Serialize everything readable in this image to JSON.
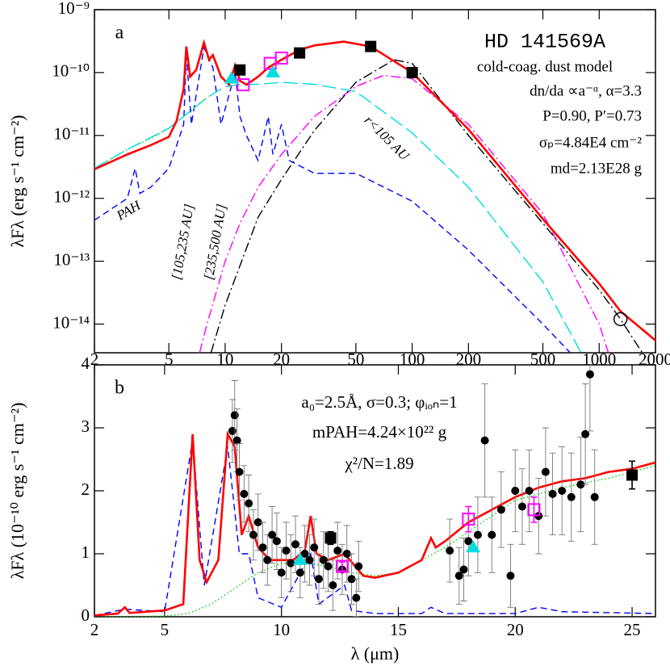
{
  "chart_data": [
    {
      "type": "line",
      "panel_label": "a",
      "title": "HD 141569A",
      "annotations": [
        "cold-coag. dust model",
        "dn/da ∝a⁻ᵅ, α=3.3",
        "P=0.90, P′=0.73",
        "σₚ=4.84E4 cm⁻²",
        "md=2.13E28 g"
      ],
      "ylabel": "λFλ  (erg s⁻¹ cm⁻²)",
      "xlog": true,
      "ylog": true,
      "xlim": [
        2,
        2000
      ],
      "ylim": [
        3.5e-15,
        1e-09
      ],
      "xticks": [
        2,
        5,
        10,
        20,
        50,
        100,
        200,
        500,
        1000,
        2000
      ],
      "yticks": [
        {
          "value": 1e-14,
          "label": "10⁻¹⁴"
        },
        {
          "value": 1e-13,
          "label": "10⁻¹³"
        },
        {
          "value": 1e-12,
          "label": "10⁻¹²"
        },
        {
          "value": 1e-11,
          "label": "10⁻¹¹"
        },
        {
          "value": 1e-10,
          "label": "10⁻¹⁰"
        },
        {
          "value": 1e-09,
          "label": "10⁻⁹"
        }
      ],
      "grid": false,
      "series": [
        {
          "color": "#00cc00",
          "dash": "dotted",
          "x": [
            2,
            3,
            4,
            5,
            6,
            8
          ],
          "values": [
            3e-12,
            6e-12,
            9e-12,
            1.3e-11,
            2e-11,
            4e-11
          ]
        },
        {
          "name": "PAH",
          "color": "#0000ff",
          "dash": "dashed",
          "x": [
            2,
            3,
            3.3,
            3.5,
            4,
            5,
            6,
            6.2,
            6.6,
            7.7,
            8.6,
            9.5,
            11.3,
            12,
            13,
            15,
            17,
            18,
            20,
            22,
            30,
            50,
            100,
            200,
            500,
            700
          ],
          "values": [
            4.5e-13,
            1e-12,
            3e-12,
            1.2e-12,
            1.5e-12,
            3e-12,
            1.5e-11,
            2e-10,
            1.5e-11,
            2.5e-10,
            1.2e-10,
            1.5e-11,
            1e-10,
            2e-11,
            1e-11,
            4e-12,
            2e-11,
            5e-12,
            1.5e-11,
            4e-12,
            2.5e-12,
            2.5e-12,
            9e-13,
            1.5e-13,
            1e-14,
            3.5e-15
          ]
        },
        {
          "name": "r<105 AU",
          "color": "#00dddd",
          "dash": "long-dashed",
          "x": [
            2,
            3,
            5,
            8,
            10,
            12,
            15,
            20,
            30,
            50,
            100,
            200,
            500,
            800
          ],
          "values": [
            3e-12,
            6e-12,
            1.3e-11,
            4e-11,
            6e-11,
            6.5e-11,
            6.5e-11,
            7e-11,
            6.5e-11,
            5e-11,
            1.1e-11,
            1.5e-12,
            4.7e-14,
            3.5e-15
          ]
        },
        {
          "name": "[105,235 AU]",
          "color": "#ff00ff",
          "dash": "dash-dot",
          "x": [
            7.3,
            8,
            10,
            12,
            15,
            20,
            30,
            50,
            70,
            100,
            200,
            500,
            1000,
            1120
          ],
          "values": [
            3.5e-15,
            1e-14,
            1e-13,
            4e-13,
            1.5e-12,
            5e-12,
            2e-11,
            6e-11,
            9e-11,
            8e-11,
            1.5e-11,
            5.7e-13,
            1e-14,
            3.5e-15
          ]
        },
        {
          "name": "[235,500 AU]",
          "color": "#000000",
          "dash": "dash-dot",
          "x": [
            8.4,
            10,
            15,
            20,
            30,
            50,
            80,
            100,
            200,
            500,
            1000,
            1300,
            1700
          ],
          "values": [
            3.5e-15,
            2e-14,
            5e-13,
            2e-12,
            1.2e-11,
            7e-11,
            1.6e-10,
            1.4e-10,
            1e-11,
            4e-13,
            3.5e-14,
            1.2e-14,
            3.5e-15
          ]
        },
        {
          "color": "#ff0000",
          "dash": "solid",
          "x": [
            2,
            3,
            4,
            5,
            5.5,
            6,
            6.2,
            6.5,
            7,
            7.7,
            8.2,
            8.6,
            9.5,
            10.5,
            11.3,
            12,
            13,
            15,
            17,
            20,
            25,
            30,
            43,
            60,
            100,
            200,
            500,
            1000,
            1300,
            2000
          ],
          "values": [
            2.9e-12,
            5e-12,
            7e-12,
            9.5e-12,
            1.7e-11,
            5.5e-11,
            2.6e-10,
            8.6e-11,
            1.1e-10,
            3e-10,
            1.6e-10,
            1.9e-10,
            8.6e-11,
            6.4e-11,
            1.3e-10,
            7.4e-11,
            6.4e-11,
            8.6e-11,
            1.2e-10,
            1.6e-10,
            2.3e-10,
            2.7e-10,
            3.1e-10,
            2.6e-10,
            1e-10,
            1.25e-11,
            4.7e-13,
            4.4e-14,
            1.6e-14,
            5.5e-15
          ]
        },
        {
          "color": "#000000",
          "marker": "square",
          "x": [
            12,
            25,
            60,
            100
          ],
          "values": [
            1.1e-10,
            2.05e-10,
            2.6e-10,
            1e-10
          ]
        },
        {
          "color": "#ff00ff",
          "marker": "square-open",
          "x": [
            12.5,
            17.4,
            20
          ],
          "values": [
            6.4e-11,
            1.4e-10,
            1.7e-10
          ]
        },
        {
          "color": "#00dddd",
          "marker": "triangle",
          "x": [
            10.8,
            18
          ],
          "values": [
            8e-11,
            1e-10
          ]
        },
        {
          "color": "#000000",
          "marker": "circle-open",
          "x": [
            1300
          ],
          "values": [
            1.2e-14
          ]
        }
      ]
    },
    {
      "type": "line",
      "panel_label": "b",
      "annotations": [
        "a₀=2.5Å, σ=0.3; φᵢₒₙ=1",
        "mPAH=4.24×10²² g",
        "χ²/N=1.89"
      ],
      "ylabel": "λFλ  (10⁻¹⁰ erg s⁻¹ cm⁻²)",
      "xlabel": "λ (μm)",
      "xlog": false,
      "ylog": false,
      "xlim": [
        2,
        26
      ],
      "ylim": [
        0,
        4
      ],
      "xticks": [
        2,
        5,
        10,
        15,
        20,
        25
      ],
      "yticks": [
        0,
        1,
        2,
        3,
        4
      ],
      "grid": false,
      "series": [
        {
          "color": "#00cc00",
          "dash": "dotted",
          "x": [
            2,
            5,
            6,
            7,
            8,
            9,
            10,
            11,
            12,
            13,
            14,
            15,
            17,
            20,
            22,
            24,
            26
          ],
          "values": [
            0,
            0.01,
            0.05,
            0.2,
            0.45,
            0.7,
            0.85,
            0.85,
            0.8,
            0.7,
            0.65,
            0.7,
            1.1,
            1.85,
            2.05,
            2.2,
            2.4
          ]
        },
        {
          "color": "#0000ff",
          "dash": "dashed",
          "x": [
            2,
            3.3,
            5,
            6.2,
            6.7,
            7.7,
            8.2,
            8.6,
            9,
            10,
            11.25,
            11.6,
            12.7,
            13,
            14,
            16,
            16.4,
            17,
            20,
            21,
            22,
            26
          ],
          "values": [
            0.02,
            0.12,
            0.08,
            2.8,
            0.5,
            2.7,
            1,
            1,
            0.3,
            0.15,
            1,
            0.2,
            0.5,
            0.1,
            0.05,
            0.05,
            0.15,
            0.05,
            0.05,
            0.15,
            0.08,
            0.05
          ]
        },
        {
          "color": "#ff0000",
          "dash": "solid",
          "x": [
            2,
            3,
            3.3,
            3.5,
            5,
            5.8,
            6.2,
            6.5,
            6.8,
            7.3,
            7.7,
            8,
            8.3,
            8.6,
            9,
            9.5,
            10,
            10.5,
            11,
            11.25,
            11.5,
            12,
            12.7,
            13.5,
            14,
            15,
            16,
            16.4,
            16.6,
            17,
            18,
            19,
            20,
            21,
            22,
            23,
            24,
            25,
            26
          ],
          "values": [
            0.02,
            0.05,
            0.15,
            0.06,
            0.1,
            0.2,
            2.9,
            0.9,
            0.55,
            0.9,
            2.9,
            2.7,
            1.3,
            1.6,
            1.1,
            0.9,
            0.9,
            0.9,
            1.05,
            1.6,
            1,
            0.9,
            1,
            0.65,
            0.62,
            0.7,
            0.9,
            1.25,
            1.1,
            1.2,
            1.5,
            1.7,
            1.9,
            2.05,
            2.15,
            2.2,
            2.3,
            2.35,
            2.45
          ]
        },
        {
          "color": "#000000",
          "marker": "dot",
          "x": [
            7.9,
            8,
            8.1,
            8.2,
            8.4,
            8.6,
            8.8,
            9,
            9.2,
            9.4,
            9.6,
            9.8,
            10,
            10.2,
            10.4,
            10.6,
            10.8,
            11,
            11.2,
            11.4,
            11.6,
            11.8,
            12,
            12.2,
            12.4,
            12.6,
            12.8,
            13,
            13.2,
            13.3,
            17.2,
            17.6,
            17.8,
            18,
            18.4,
            18.7,
            19,
            19.4,
            19.8,
            20,
            20.3,
            20.6,
            21,
            21.3,
            21.6,
            22,
            22.4,
            22.8,
            23,
            23.2,
            23.4
          ],
          "values": [
            2.95,
            3.2,
            2.8,
            2.3,
            1.95,
            1.8,
            1.3,
            1.5,
            1.1,
            0.9,
            1.3,
            1.2,
            0.7,
            1.05,
            0.85,
            1.15,
            0.7,
            1,
            0.9,
            1.1,
            0.6,
            0.9,
            0.8,
            0.5,
            1.05,
            0.75,
            1,
            0.6,
            0.3,
            0.8,
            1.05,
            0.65,
            0.75,
            1.2,
            1.3,
            2.8,
            1.3,
            1.7,
            0.65,
            2,
            1.75,
            2,
            1.6,
            2.3,
            1.95,
            2,
            1.9,
            2.1,
            2.9,
            3.85,
            1.9
          ],
          "errors": [
            0.5,
            0.55,
            0.5,
            0.45,
            0.45,
            0.45,
            0.4,
            0.45,
            0.4,
            0.4,
            0.45,
            0.45,
            0.4,
            0.45,
            0.45,
            0.45,
            0.4,
            0.45,
            0.4,
            0.45,
            0.4,
            0.45,
            0.4,
            0.4,
            0.45,
            0.4,
            0.45,
            0.4,
            0.3,
            0.4,
            0.5,
            0.45,
            0.5,
            0.55,
            0.6,
            0.9,
            0.6,
            0.6,
            0.5,
            0.65,
            0.6,
            0.65,
            0.6,
            0.7,
            0.65,
            0.7,
            0.7,
            0.75,
            0.8,
            0.9,
            0.75
          ]
        },
        {
          "color": "#000000",
          "marker": "square",
          "x": [
            12.1,
            25
          ],
          "values": [
            1.25,
            2.25
          ],
          "errors": [
            0.1,
            0.22
          ]
        },
        {
          "color": "#ff00ff",
          "marker": "square-open",
          "x": [
            12.6,
            18,
            20.8
          ],
          "values": [
            0.8,
            1.55,
            1.7
          ],
          "errors": [
            0.07,
            0.2,
            0.2
          ]
        },
        {
          "color": "#00dddd",
          "marker": "triangle",
          "x": [
            10.8,
            18.2
          ],
          "values": [
            0.9,
            1.1
          ]
        }
      ]
    }
  ]
}
